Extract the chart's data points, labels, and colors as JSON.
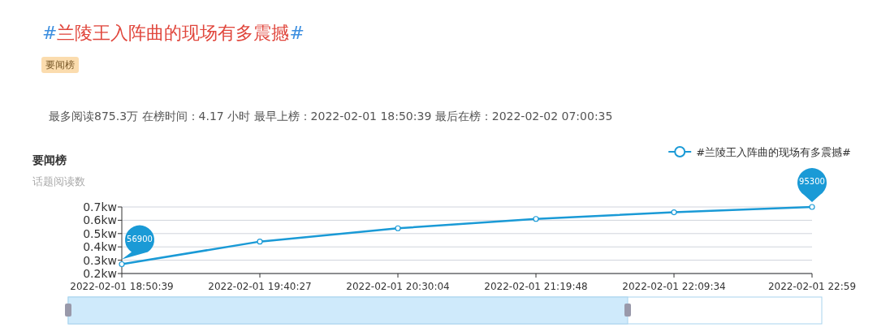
{
  "chart_data": {
    "type": "line",
    "title": "#兰陵王入阵曲的现场有多震撼#",
    "subtitle": "要闻榜",
    "annotations": [
      "最多阅读875.3万 在榜时间：4.17 小时 最早上榜：2022-02-01 18:50:39 最后在榜：2022-02-02 07:00:35",
      "要闻榜",
      {
        "text": "56900",
        "x": "2022-02-01 18:50:39",
        "y": 0.27
      },
      {
        "text": "95300",
        "x": "2022-02-01 22:59",
        "y": 0.7
      }
    ],
    "ylabel": "话题阅读数",
    "categories": [
      "2022-02-01 18:50:39",
      "2022-02-01 19:40:27",
      "2022-02-01 20:30:04",
      "2022-02-01 21:19:48",
      "2022-02-01 22:09:34",
      "2022-02-01 22:59"
    ],
    "series": [
      {
        "name": "#兰陵王入阵曲的现场有多震撼#",
        "color": "#1a9ad6",
        "values": [
          0.27,
          0.44,
          0.54,
          0.61,
          0.66,
          0.7
        ]
      }
    ],
    "ylim": [
      0.2,
      0.7
    ],
    "yticks": [
      {
        "value": 0.2,
        "label": "0.2kw"
      },
      {
        "value": 0.3,
        "label": "0.3kw"
      },
      {
        "value": 0.4,
        "label": "0.4kw"
      },
      {
        "value": 0.5,
        "label": "0.5kw"
      },
      {
        "value": 0.6,
        "label": "0.6kw"
      },
      {
        "value": 0.7,
        "label": "0.7kw"
      }
    ],
    "grid": "y",
    "legend": "top right",
    "marker": "circle",
    "line_style": "solid"
  }
}
